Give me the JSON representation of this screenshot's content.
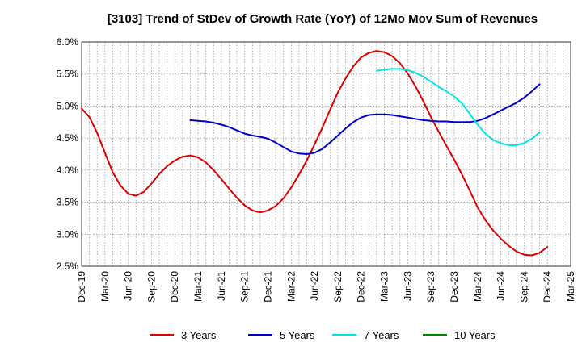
{
  "chart_data": {
    "type": "line",
    "title": "[3103]  Trend of StDev of Growth Rate (YoY) of 12Mo Mov Sum of Revenues",
    "xlabel": "",
    "ylabel": "",
    "ylim": [
      0.025,
      0.06
    ],
    "y_ticks": [
      0.025,
      0.03,
      0.035,
      0.04,
      0.045,
      0.05,
      0.055,
      0.06
    ],
    "y_tick_labels": [
      "2.5%",
      "3.0%",
      "3.5%",
      "4.0%",
      "4.5%",
      "5.0%",
      "5.5%",
      "6.0%"
    ],
    "x_start": "2019-12",
    "x_months": 63,
    "x_tick_labels": [
      "Dec-19",
      "Mar-20",
      "Jun-20",
      "Sep-20",
      "Dec-20",
      "Mar-21",
      "Jun-21",
      "Sep-21",
      "Dec-21",
      "Mar-22",
      "Jun-22",
      "Sep-22",
      "Dec-22",
      "Mar-23",
      "Jun-23",
      "Sep-23",
      "Dec-23",
      "Mar-24",
      "Jun-24",
      "Sep-24",
      "Dec-24",
      "Mar-25"
    ],
    "grid": true,
    "legend_position": "bottom",
    "series": [
      {
        "name": "3 Years",
        "color": "#dd0000",
        "start_index": 0,
        "values": [
          0.0496,
          0.0483,
          0.0458,
          0.0427,
          0.0397,
          0.0376,
          0.0363,
          0.036,
          0.0366,
          0.0379,
          0.0394,
          0.0406,
          0.0415,
          0.0421,
          0.0423,
          0.042,
          0.0412,
          0.04,
          0.0386,
          0.0371,
          0.0357,
          0.0345,
          0.0337,
          0.0334,
          0.0337,
          0.0344,
          0.0356,
          0.0373,
          0.0393,
          0.0415,
          0.044,
          0.0466,
          0.0494,
          0.0521,
          0.0543,
          0.0562,
          0.0576,
          0.0583,
          0.0586,
          0.0584,
          0.0578,
          0.0567,
          0.0551,
          0.0531,
          0.0508,
          0.0483,
          0.046,
          0.0438,
          0.0416,
          0.0393,
          0.0368,
          0.0342,
          0.0322,
          0.0306,
          0.0293,
          0.0282,
          0.0273,
          0.0268,
          0.0267,
          0.0271,
          0.028
        ]
      },
      {
        "name": "5 Years",
        "color": "#0000cc",
        "start_index": 14,
        "values": [
          0.0478,
          0.0477,
          0.0476,
          0.0474,
          0.0471,
          0.0467,
          0.0462,
          0.0457,
          0.0454,
          0.0452,
          0.0449,
          0.0443,
          0.0436,
          0.0429,
          0.0426,
          0.0425,
          0.0427,
          0.0433,
          0.0443,
          0.0454,
          0.0465,
          0.0475,
          0.0482,
          0.0486,
          0.0487,
          0.0487,
          0.0486,
          0.0484,
          0.0482,
          0.048,
          0.0478,
          0.0477,
          0.0476,
          0.0476,
          0.0475,
          0.0475,
          0.0475,
          0.0477,
          0.0481,
          0.0487,
          0.0493,
          0.0499,
          0.0505,
          0.0513,
          0.0523,
          0.0534
        ]
      },
      {
        "name": "7 Years",
        "color": "#00e5e5",
        "start_index": 38,
        "values": [
          0.0555,
          0.0557,
          0.0558,
          0.0558,
          0.0556,
          0.0552,
          0.0546,
          0.0538,
          0.053,
          0.0523,
          0.0515,
          0.0504,
          0.0488,
          0.0471,
          0.0457,
          0.0447,
          0.0442,
          0.0439,
          0.0439,
          0.0442,
          0.0449,
          0.0459
        ]
      },
      {
        "name": "10 Years",
        "color": "#008800",
        "start_index": 0,
        "values": []
      }
    ]
  }
}
